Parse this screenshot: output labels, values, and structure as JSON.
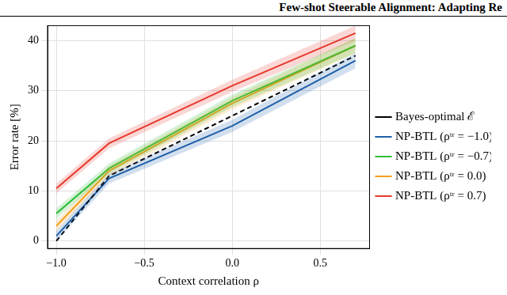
{
  "page_header": "Few-shot Steerable Alignment: Adapting Re",
  "chart_data": {
    "type": "line",
    "x_label": "Context correlation ρ",
    "y_label": "Error rate [%]",
    "x": [
      -1.0,
      -0.7,
      0.0,
      0.7
    ],
    "xlim": [
      -1.05,
      0.78
    ],
    "xticks": [
      {
        "value": -1.0,
        "label": "−1.0"
      },
      {
        "value": -0.5,
        "label": "−0.5"
      },
      {
        "value": 0.0,
        "label": "0.0"
      },
      {
        "value": 0.5,
        "label": "0.5"
      }
    ],
    "ylim": [
      -1.5,
      43
    ],
    "yticks": [
      0,
      10,
      20,
      30,
      40
    ],
    "grid": true,
    "legend": "right",
    "series": [
      {
        "name": "Bayes-optimal ℰ",
        "color": "#000000",
        "line_style": "dashed",
        "values": [
          0,
          13,
          25,
          37
        ]
      },
      {
        "name": "NP-BTL (ρᵗʳ = −1.0)",
        "color": "#1f5fa8",
        "line_style": "solid",
        "values": [
          1,
          12.5,
          23,
          36
        ],
        "error": [
          1,
          1,
          1.2,
          1.5
        ]
      },
      {
        "name": "NP-BTL (ρᵗʳ = −0.7)",
        "color": "#2fbf3a",
        "line_style": "solid",
        "values": [
          5.5,
          14.5,
          28,
          39
        ],
        "error": [
          1,
          1,
          1.2,
          1.5
        ]
      },
      {
        "name": "NP-BTL (ρᵗʳ = 0.0)",
        "color": "#f5a020",
        "line_style": "solid",
        "values": [
          3,
          14,
          27.5,
          39
        ],
        "error": [
          1,
          1,
          1.2,
          1.5
        ]
      },
      {
        "name": "NP-BTL (ρᵗʳ = 0.7)",
        "color": "#e8392b",
        "line_style": "solid",
        "values": [
          10.5,
          19.5,
          31,
          41.5
        ],
        "error": [
          1,
          1,
          1.2,
          1.5
        ]
      }
    ]
  }
}
